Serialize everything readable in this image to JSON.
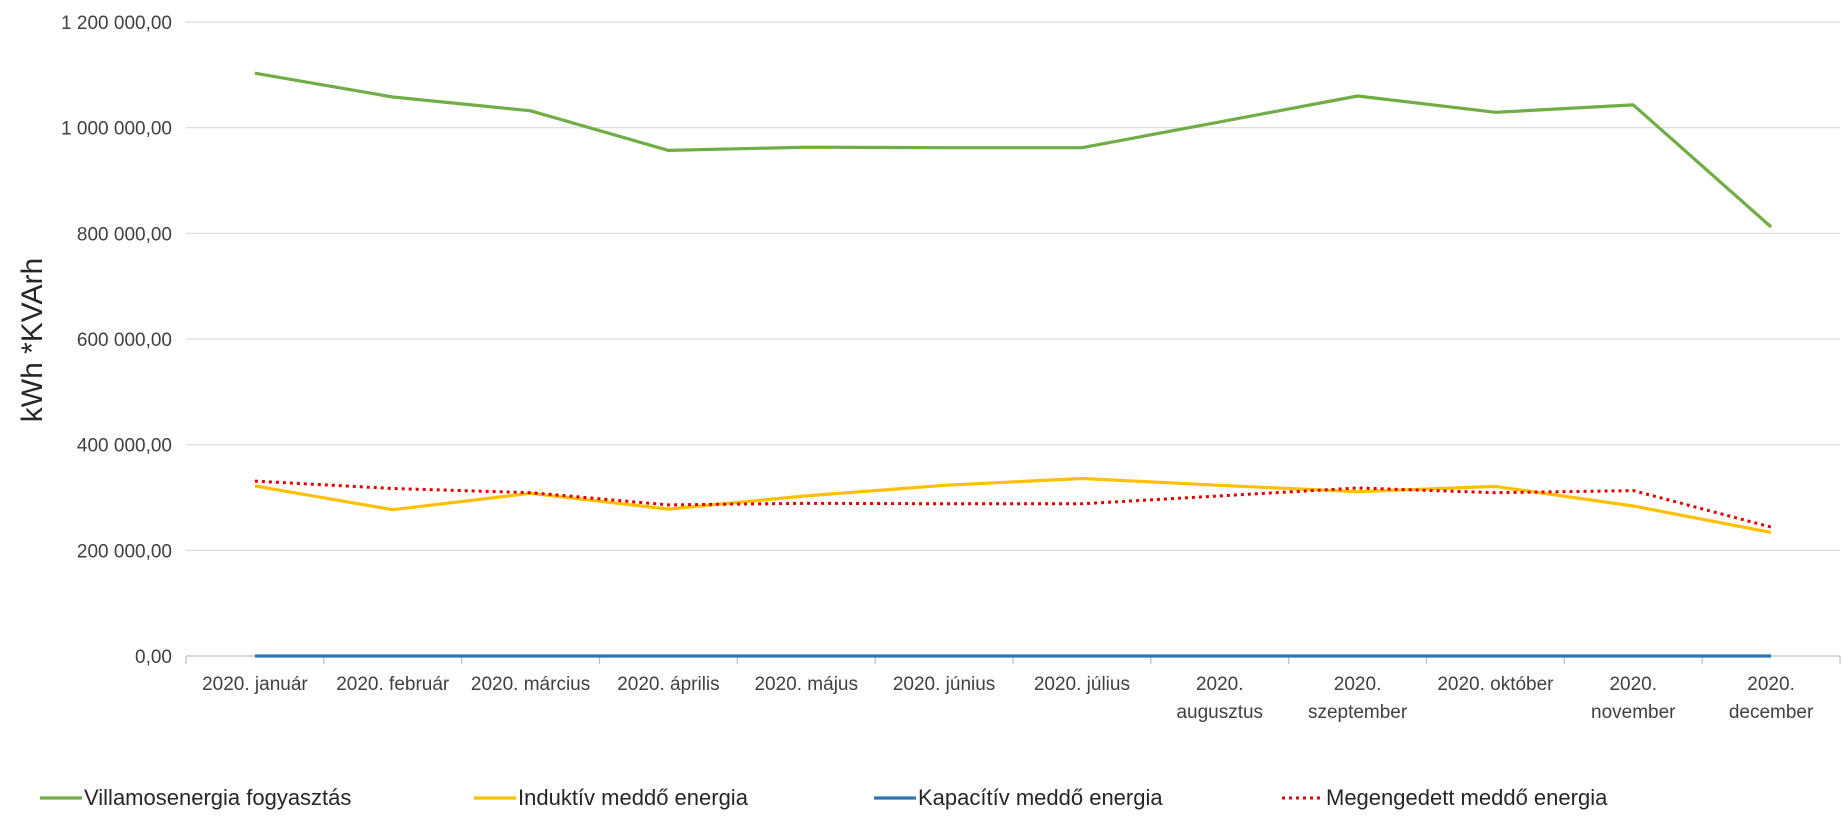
{
  "chart_data": {
    "type": "line",
    "ylabel": "kWh   *KVArh",
    "ylim": [
      0,
      1200000
    ],
    "yticks": [
      0,
      200000,
      400000,
      600000,
      800000,
      1000000,
      1200000
    ],
    "ytick_labels": [
      "0,00",
      "200 000,00",
      "400 000,00",
      "600 000,00",
      "800 000,00",
      "1 000 000,00",
      "1 200 000,00"
    ],
    "grid": true,
    "legend_position": "bottom",
    "categories": [
      [
        "2020. január"
      ],
      [
        "2020. február"
      ],
      [
        "2020. március"
      ],
      [
        "2020. április"
      ],
      [
        "2020. május"
      ],
      [
        "2020. június"
      ],
      [
        "2020. július"
      ],
      [
        "2020.",
        "augusztus"
      ],
      [
        "2020.",
        "szeptember"
      ],
      [
        "2020. október"
      ],
      [
        "2020.",
        "november"
      ],
      [
        "2020.",
        "december"
      ]
    ],
    "series": [
      {
        "name": "Villamosenergia fogyasztás",
        "color": "#70ad47",
        "style": "solid",
        "values": [
          1103000,
          1058000,
          1032000,
          957000,
          963000,
          962000,
          962000,
          1011000,
          1060000,
          1029000,
          1043000,
          812000
        ]
      },
      {
        "name": "Induktív meddő energia",
        "color": "#ffc000",
        "style": "solid",
        "values": [
          322000,
          277000,
          308000,
          278000,
          303000,
          323000,
          336000,
          323000,
          311000,
          321000,
          284000,
          234000
        ]
      },
      {
        "name": "Kapacítív meddő energia",
        "color": "#2e75b6",
        "style": "solid",
        "values": [
          0,
          0,
          0,
          0,
          0,
          0,
          0,
          0,
          0,
          0,
          0,
          0
        ]
      },
      {
        "name": "Megengedett meddő energia",
        "color": "#e00000",
        "style": "dotted",
        "values": [
          331000,
          317000,
          309000,
          286000,
          289000,
          288000,
          288000,
          303000,
          318000,
          309000,
          313000,
          244000
        ]
      }
    ]
  }
}
